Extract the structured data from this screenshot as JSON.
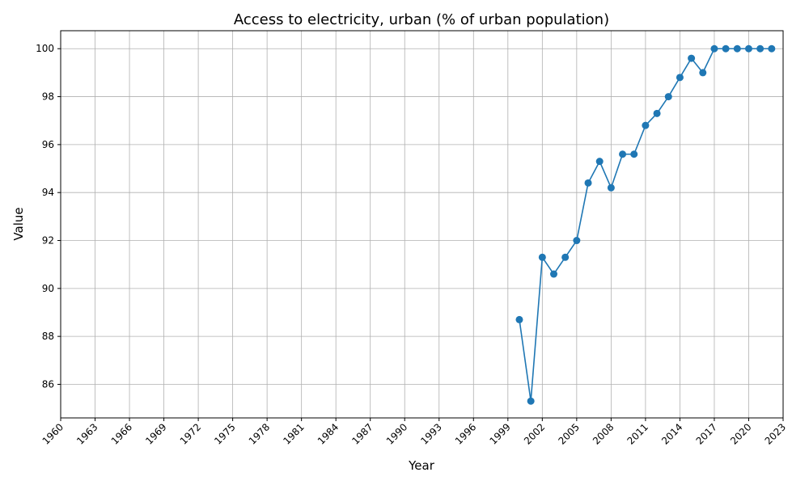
{
  "chart_data": {
    "type": "line",
    "title": "Access to electricity, urban (% of urban population)",
    "xlabel": "Year",
    "ylabel": "Value",
    "xlim": [
      1960,
      2023
    ],
    "ylim": [
      84.6,
      100.75
    ],
    "x_ticks": [
      1960,
      1963,
      1966,
      1969,
      1972,
      1975,
      1978,
      1981,
      1984,
      1987,
      1990,
      1993,
      1996,
      1999,
      2002,
      2005,
      2008,
      2011,
      2014,
      2017,
      2020,
      2023
    ],
    "y_ticks": [
      86,
      88,
      90,
      92,
      94,
      96,
      98,
      100
    ],
    "grid": true,
    "color": "#1f77b4",
    "series": [
      {
        "x": [
          2000,
          2001,
          2002,
          2003,
          2004,
          2005,
          2006,
          2007,
          2008,
          2009,
          2010,
          2011,
          2012,
          2013,
          2014,
          2015,
          2016,
          2017,
          2018,
          2019,
          2020,
          2021,
          2022
        ],
        "values": [
          88.7,
          85.3,
          91.3,
          90.6,
          91.3,
          92.0,
          94.4,
          95.3,
          94.2,
          95.6,
          95.6,
          96.8,
          97.3,
          98.0,
          98.8,
          99.6,
          99.0,
          100,
          100,
          100,
          100,
          100,
          100
        ]
      }
    ]
  }
}
